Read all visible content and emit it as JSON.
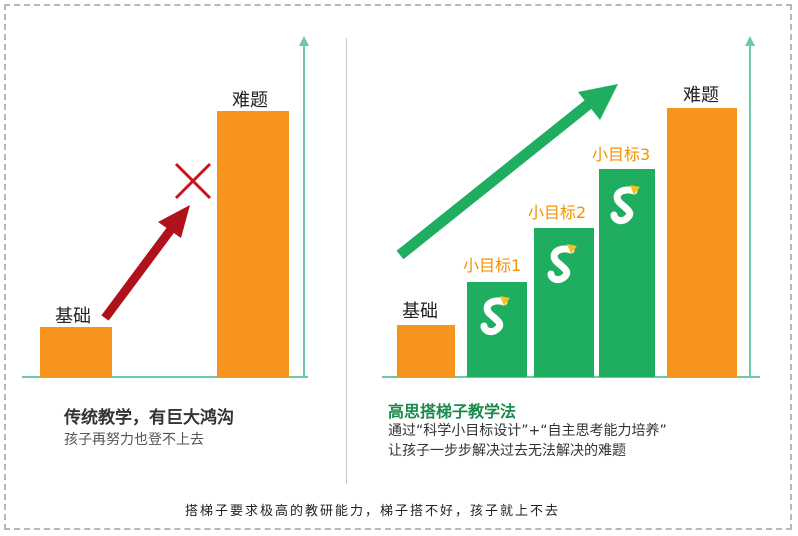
{
  "left_panel": {
    "label_base": "基础",
    "label_hard": "难题",
    "caption_title": "传统教学，有巨大鸿沟",
    "caption_sub": "孩子再努力也登不上去"
  },
  "right_panel": {
    "label_base": "基础",
    "label_hard": "难题",
    "goals": [
      "小目标1",
      "小目标2",
      "小目标3"
    ],
    "caption_title": "高思搭梯子教学法",
    "caption_line1": "通过“科学小目标设计”+“自主思考能力培养”",
    "caption_line2": "让孩子一步步解决过去无法解决的难题"
  },
  "footer": "搭梯子要求极高的教研能力，梯子搭不好，孩子就上不去",
  "colors": {
    "orange": "#f7941d",
    "green": "#1fae5f",
    "red": "#b0121b",
    "axis": "#6dc9a4"
  },
  "icons": {
    "cross": "cross-icon",
    "logo": "gaosi-s-logo-icon"
  }
}
